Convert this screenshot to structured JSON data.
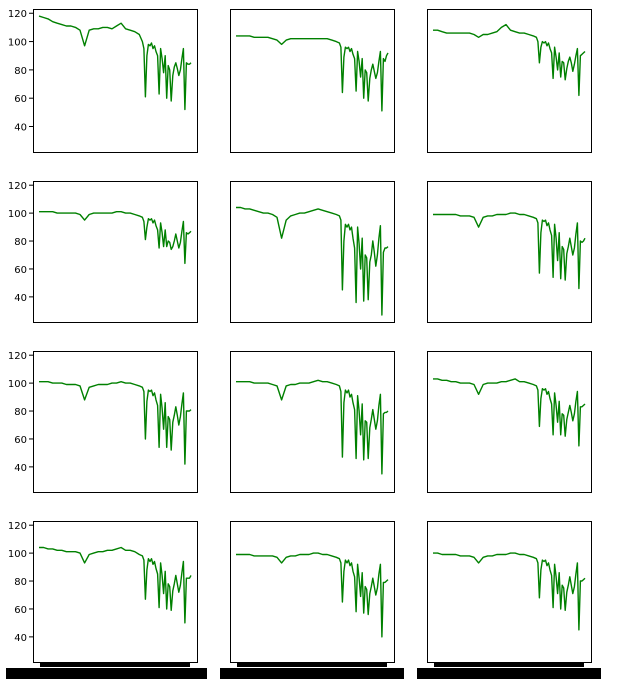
{
  "chart_data": {
    "type": "line",
    "layout": "4x3 grid of small multiples",
    "colors": {
      "line": "#008000",
      "axes": "#000000",
      "background": "#ffffff"
    },
    "grid": false,
    "legend": "none",
    "shared_y_axis": true,
    "ylim": [
      22,
      123
    ],
    "yticks": [
      40,
      60,
      80,
      100,
      120
    ],
    "ytick_labels": [
      "40",
      "60",
      "80",
      "100",
      "120"
    ],
    "x_tick_labels": "illegible (overlapping solid black labels under bottom row)",
    "xlim": [
      0,
      100
    ],
    "x": [
      0,
      3,
      6,
      9,
      12,
      15,
      18,
      21,
      24,
      27,
      30,
      33,
      36,
      39,
      42,
      45,
      48,
      51,
      54,
      57,
      60,
      63,
      66,
      68,
      69,
      70,
      71,
      72,
      73,
      74,
      75,
      76,
      77,
      78,
      79,
      80,
      81,
      82,
      83,
      84,
      85,
      86,
      87,
      88,
      89,
      90,
      91,
      92,
      93,
      94,
      95,
      96,
      97,
      98,
      99,
      100
    ],
    "panels": [
      {
        "values": [
          118,
          117,
          116,
          114,
          113,
          112,
          111,
          111,
          110,
          108,
          97,
          108,
          109,
          109,
          110,
          110,
          109,
          111,
          113,
          109,
          108,
          107,
          105,
          100,
          95,
          61,
          90,
          98,
          97,
          99,
          95,
          97,
          93,
          90,
          63,
          95,
          88,
          78,
          90,
          60,
          83,
          80,
          58,
          76,
          82,
          85,
          81,
          76,
          80,
          88,
          95,
          52,
          85,
          84,
          84,
          85
        ]
      },
      {
        "values": [
          104,
          104,
          104,
          104,
          103,
          103,
          103,
          103,
          102,
          101,
          98,
          101,
          102,
          102,
          102,
          102,
          102,
          102,
          102,
          102,
          102,
          101,
          100,
          99,
          96,
          64,
          89,
          96,
          95,
          96,
          93,
          95,
          91,
          88,
          65,
          93,
          86,
          75,
          88,
          60,
          80,
          78,
          58,
          74,
          80,
          84,
          79,
          74,
          78,
          86,
          93,
          51,
          88,
          86,
          90,
          92
        ]
      },
      {
        "values": [
          108,
          108,
          107,
          106,
          106,
          106,
          106,
          106,
          106,
          105,
          103,
          105,
          105,
          106,
          107,
          110,
          112,
          108,
          107,
          106,
          106,
          105,
          104,
          103,
          100,
          85,
          96,
          100,
          99,
          100,
          97,
          99,
          95,
          92,
          74,
          96,
          89,
          80,
          92,
          75,
          86,
          85,
          73,
          81,
          86,
          89,
          85,
          79,
          84,
          90,
          95,
          62,
          90,
          91,
          92,
          93
        ]
      },
      {
        "values": [
          101,
          101,
          101,
          101,
          100,
          100,
          100,
          100,
          100,
          99,
          95,
          99,
          100,
          100,
          100,
          100,
          100,
          101,
          101,
          100,
          100,
          99,
          98,
          97,
          94,
          81,
          90,
          96,
          95,
          96,
          93,
          95,
          91,
          88,
          75,
          93,
          86,
          76,
          88,
          76,
          80,
          79,
          74,
          76,
          80,
          85,
          80,
          75,
          79,
          87,
          94,
          64,
          86,
          85,
          86,
          87
        ]
      },
      {
        "values": [
          104,
          104,
          103,
          103,
          102,
          101,
          100,
          100,
          99,
          97,
          82,
          95,
          98,
          99,
          100,
          100,
          101,
          102,
          103,
          102,
          101,
          100,
          99,
          98,
          95,
          45,
          80,
          92,
          90,
          92,
          88,
          90,
          82,
          75,
          36,
          90,
          78,
          60,
          82,
          37,
          70,
          68,
          38,
          65,
          70,
          80,
          72,
          62,
          70,
          82,
          91,
          27,
          72,
          75,
          75,
          76
        ]
      },
      {
        "values": [
          99,
          99,
          99,
          99,
          99,
          99,
          98,
          98,
          98,
          97,
          90,
          97,
          98,
          98,
          99,
          99,
          99,
          100,
          100,
          99,
          99,
          98,
          97,
          96,
          93,
          57,
          86,
          95,
          94,
          95,
          91,
          93,
          88,
          84,
          54,
          92,
          82,
          66,
          86,
          53,
          76,
          74,
          52,
          71,
          76,
          82,
          76,
          70,
          75,
          85,
          93,
          46,
          80,
          79,
          80,
          82
        ]
      },
      {
        "values": [
          101,
          101,
          101,
          100,
          100,
          100,
          99,
          99,
          99,
          98,
          88,
          97,
          98,
          99,
          99,
          99,
          100,
          100,
          101,
          100,
          100,
          99,
          98,
          97,
          94,
          60,
          87,
          95,
          94,
          95,
          91,
          93,
          88,
          84,
          54,
          92,
          82,
          67,
          86,
          54,
          76,
          74,
          52,
          72,
          77,
          83,
          77,
          70,
          76,
          85,
          93,
          42,
          80,
          80,
          80,
          81
        ]
      },
      {
        "values": [
          101,
          101,
          101,
          101,
          100,
          100,
          100,
          100,
          99,
          98,
          88,
          98,
          99,
          99,
          100,
          100,
          100,
          101,
          102,
          101,
          101,
          100,
          99,
          98,
          94,
          47,
          86,
          95,
          93,
          95,
          90,
          92,
          86,
          81,
          46,
          91,
          80,
          63,
          85,
          45,
          73,
          72,
          46,
          68,
          74,
          81,
          74,
          67,
          73,
          84,
          92,
          35,
          78,
          79,
          79,
          80
        ]
      },
      {
        "values": [
          103,
          103,
          102,
          102,
          101,
          101,
          100,
          100,
          100,
          99,
          92,
          99,
          100,
          100,
          100,
          101,
          101,
          102,
          103,
          101,
          101,
          100,
          99,
          98,
          95,
          69,
          89,
          96,
          95,
          96,
          92,
          94,
          89,
          85,
          63,
          93,
          84,
          72,
          87,
          63,
          78,
          77,
          62,
          74,
          79,
          84,
          79,
          73,
          78,
          87,
          94,
          55,
          83,
          83,
          84,
          85
        ]
      },
      {
        "values": [
          104,
          104,
          103,
          103,
          102,
          102,
          101,
          101,
          101,
          100,
          93,
          99,
          100,
          101,
          101,
          102,
          102,
          103,
          104,
          102,
          102,
          101,
          99,
          98,
          95,
          67,
          88,
          96,
          94,
          96,
          92,
          94,
          89,
          85,
          61,
          93,
          84,
          71,
          87,
          60,
          78,
          76,
          59,
          73,
          78,
          84,
          78,
          72,
          77,
          86,
          94,
          50,
          82,
          82,
          82,
          84
        ]
      },
      {
        "values": [
          99,
          99,
          99,
          99,
          98,
          98,
          98,
          98,
          98,
          97,
          93,
          97,
          98,
          98,
          99,
          99,
          99,
          100,
          100,
          99,
          99,
          98,
          97,
          96,
          93,
          65,
          87,
          95,
          93,
          95,
          91,
          93,
          87,
          83,
          58,
          92,
          82,
          69,
          86,
          57,
          76,
          74,
          56,
          71,
          76,
          82,
          76,
          70,
          75,
          85,
          92,
          40,
          79,
          79,
          80,
          81
        ]
      },
      {
        "values": [
          100,
          100,
          99,
          99,
          99,
          99,
          98,
          98,
          98,
          97,
          93,
          97,
          98,
          98,
          99,
          99,
          99,
          100,
          100,
          99,
          99,
          98,
          97,
          96,
          93,
          68,
          88,
          95,
          94,
          95,
          91,
          93,
          88,
          84,
          61,
          92,
          83,
          71,
          86,
          60,
          77,
          75,
          59,
          72,
          77,
          83,
          77,
          71,
          76,
          85,
          93,
          45,
          80,
          80,
          81,
          82
        ]
      }
    ]
  }
}
